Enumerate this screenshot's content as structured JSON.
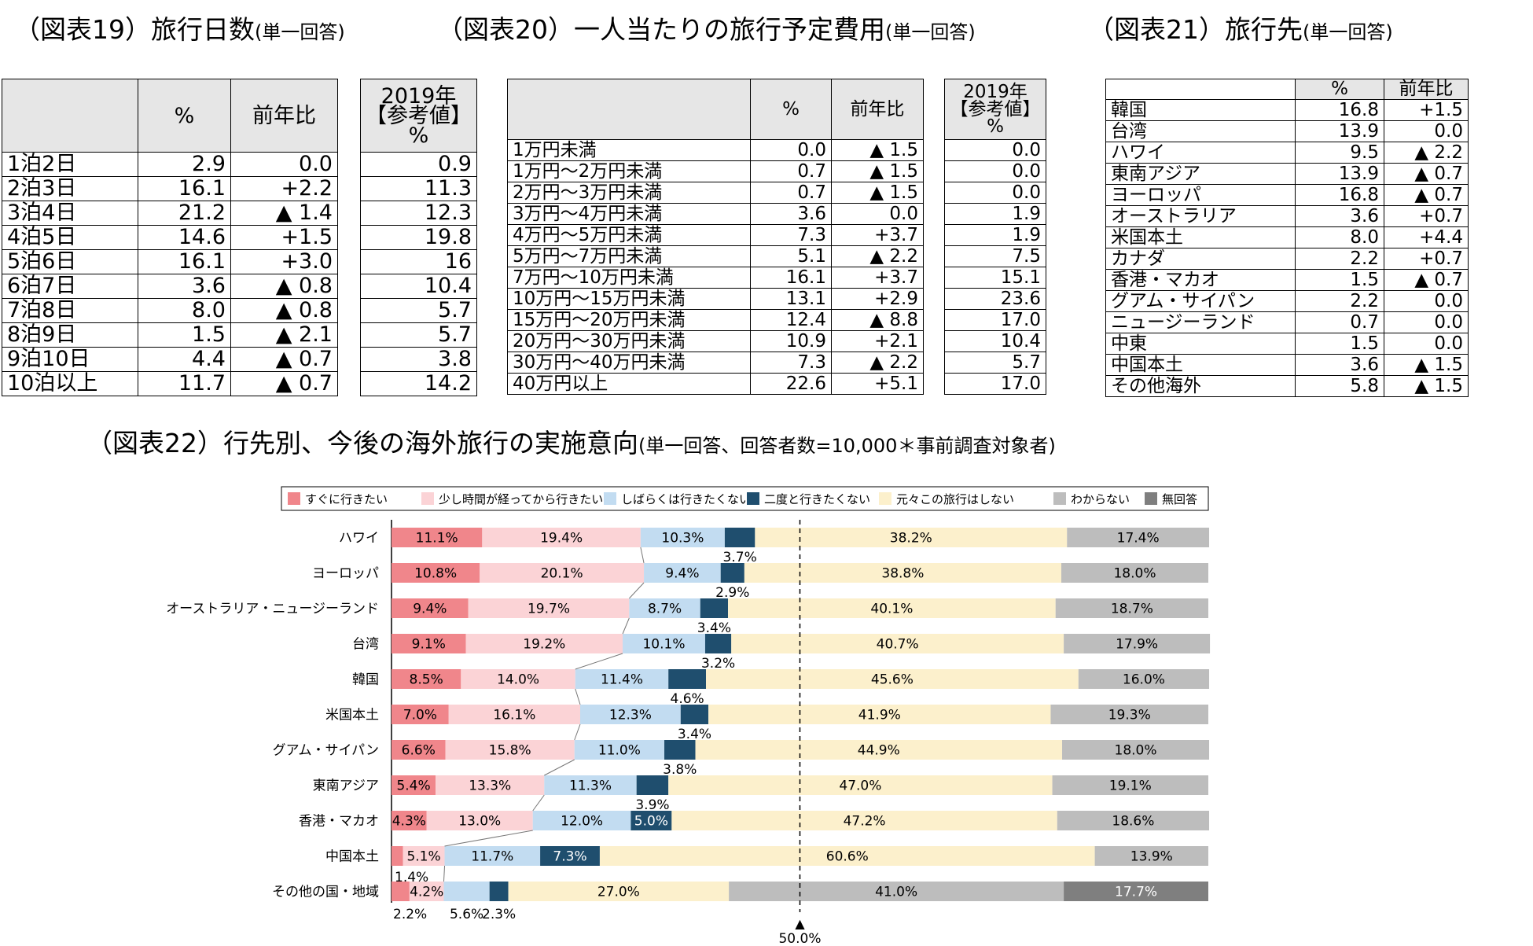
{
  "titles": {
    "t19": "（図表19）旅行日数",
    "t19_sub": "(単一回答)",
    "t20": "（図表20）一人当たりの旅行予定費用",
    "t20_sub": "(単一回答)",
    "t21": "（図表21）旅行先",
    "t21_sub": "(単一回答)",
    "t22": "（図表22）行先別、今後の海外旅行の実施意向",
    "t22_sub": "(単一回答、回答者数=10,000＊事前調査対象者)"
  },
  "table19": {
    "headers": [
      "",
      "%",
      "前年比"
    ],
    "ref_header": [
      "2019年",
      "【参考値】",
      "%"
    ],
    "rows": [
      {
        "label": "1泊2日",
        "pct": "2.9",
        "yoy": "0.0",
        "ref": "0.9"
      },
      {
        "label": "2泊3日",
        "pct": "16.1",
        "yoy": "+2.2",
        "ref": "11.3"
      },
      {
        "label": "3泊4日",
        "pct": "21.2",
        "yoy": "▲ 1.4",
        "ref": "12.3"
      },
      {
        "label": "4泊5日",
        "pct": "14.6",
        "yoy": "+1.5",
        "ref": "19.8"
      },
      {
        "label": "5泊6日",
        "pct": "16.1",
        "yoy": "+3.0",
        "ref": "16"
      },
      {
        "label": "6泊7日",
        "pct": "3.6",
        "yoy": "▲ 0.8",
        "ref": "10.4"
      },
      {
        "label": "7泊8日",
        "pct": "8.0",
        "yoy": "▲ 0.8",
        "ref": "5.7"
      },
      {
        "label": "8泊9日",
        "pct": "1.5",
        "yoy": "▲ 2.1",
        "ref": "5.7"
      },
      {
        "label": "9泊10日",
        "pct": "4.4",
        "yoy": "▲ 0.7",
        "ref": "3.8"
      },
      {
        "label": "10泊以上",
        "pct": "11.7",
        "yoy": "▲ 0.7",
        "ref": "14.2"
      }
    ]
  },
  "table20": {
    "headers": [
      "",
      "%",
      "前年比"
    ],
    "ref_header": [
      "2019年",
      "【参考値】",
      "%"
    ],
    "rows": [
      {
        "label": "1万円未満",
        "pct": "0.0",
        "yoy": "▲ 1.5",
        "ref": "0.0"
      },
      {
        "label": "1万円～2万円未満",
        "pct": "0.7",
        "yoy": "▲ 1.5",
        "ref": "0.0"
      },
      {
        "label": "2万円～3万円未満",
        "pct": "0.7",
        "yoy": "▲ 1.5",
        "ref": "0.0"
      },
      {
        "label": "3万円～4万円未満",
        "pct": "3.6",
        "yoy": "0.0",
        "ref": "1.9"
      },
      {
        "label": "4万円～5万円未満",
        "pct": "7.3",
        "yoy": "+3.7",
        "ref": "1.9"
      },
      {
        "label": "5万円～7万円未満",
        "pct": "5.1",
        "yoy": "▲ 2.2",
        "ref": "7.5"
      },
      {
        "label": "7万円～10万円未満",
        "pct": "16.1",
        "yoy": "+3.7",
        "ref": "15.1"
      },
      {
        "label": "10万円～15万円未満",
        "pct": "13.1",
        "yoy": "+2.9",
        "ref": "23.6"
      },
      {
        "label": "15万円～20万円未満",
        "pct": "12.4",
        "yoy": "▲ 8.8",
        "ref": "17.0"
      },
      {
        "label": "20万円～30万円未満",
        "pct": "10.9",
        "yoy": "+2.1",
        "ref": "10.4"
      },
      {
        "label": "30万円～40万円未満",
        "pct": "7.3",
        "yoy": "▲ 2.2",
        "ref": "5.7"
      },
      {
        "label": "40万円以上",
        "pct": "22.6",
        "yoy": "+5.1",
        "ref": "17.0"
      }
    ]
  },
  "table21": {
    "headers": [
      "",
      "%",
      "前年比"
    ],
    "rows": [
      {
        "label": "韓国",
        "pct": "16.8",
        "yoy": "+1.5"
      },
      {
        "label": "台湾",
        "pct": "13.9",
        "yoy": "0.0"
      },
      {
        "label": "ハワイ",
        "pct": "9.5",
        "yoy": "▲ 2.2"
      },
      {
        "label": "東南アジア",
        "pct": "13.9",
        "yoy": "▲ 0.7"
      },
      {
        "label": "ヨーロッパ",
        "pct": "16.8",
        "yoy": "▲ 0.7"
      },
      {
        "label": "オーストラリア",
        "pct": "3.6",
        "yoy": "+0.7"
      },
      {
        "label": "米国本土",
        "pct": "8.0",
        "yoy": "+4.4"
      },
      {
        "label": "カナダ",
        "pct": "2.2",
        "yoy": "+0.7"
      },
      {
        "label": "香港・マカオ",
        "pct": "1.5",
        "yoy": "▲ 0.7"
      },
      {
        "label": "グアム・サイパン",
        "pct": "2.2",
        "yoy": "0.0"
      },
      {
        "label": "ニュージーランド",
        "pct": "0.7",
        "yoy": "0.0"
      },
      {
        "label": "中東",
        "pct": "1.5",
        "yoy": "0.0"
      },
      {
        "label": "中国本土",
        "pct": "3.6",
        "yoy": "▲ 1.5"
      },
      {
        "label": "その他海外",
        "pct": "5.8",
        "yoy": "▲ 1.5"
      }
    ]
  },
  "chart_data": {
    "type": "bar",
    "orientation": "horizontal-stacked-100",
    "title": "（図表22）行先別、今後の海外旅行の実施意向",
    "categories": [
      "ハワイ",
      "ヨーロッパ",
      "オーストラリア・ニュージーランド",
      "台湾",
      "韓国",
      "米国本土",
      "グアム・サイパン",
      "東南アジア",
      "香港・マカオ",
      "中国本土",
      "その他の国・地域"
    ],
    "series": [
      {
        "name": "すぐに行きたい",
        "color": "#f0868b",
        "values": [
          11.1,
          10.8,
          9.4,
          9.1,
          8.5,
          7.0,
          6.6,
          5.4,
          4.3,
          1.4,
          2.2
        ]
      },
      {
        "name": "少し時間が経ってから行きたい",
        "color": "#fbd3d6",
        "values": [
          19.4,
          20.1,
          19.7,
          19.2,
          14.0,
          16.1,
          15.8,
          13.3,
          13.0,
          5.1,
          4.2
        ]
      },
      {
        "name": "しばらくは行きたくない",
        "color": "#c2dcf1",
        "values": [
          10.3,
          9.4,
          8.7,
          10.1,
          11.4,
          12.3,
          11.0,
          11.3,
          12.0,
          11.7,
          5.6
        ]
      },
      {
        "name": "二度と行きたくない",
        "color": "#1f4e6e",
        "values": [
          3.7,
          2.9,
          3.4,
          3.2,
          4.6,
          3.4,
          3.8,
          3.9,
          5.0,
          7.3,
          2.3
        ]
      },
      {
        "name": "元々この旅行はしない",
        "color": "#fcf0cc",
        "values": [
          38.2,
          38.8,
          40.1,
          40.7,
          45.6,
          41.9,
          44.9,
          47.0,
          47.2,
          60.6,
          27.0
        ]
      },
      {
        "name": "わからない",
        "color": "#bdbdbd",
        "values": [
          17.4,
          18.0,
          18.7,
          17.9,
          16.0,
          19.3,
          18.0,
          19.1,
          18.6,
          13.9,
          41.0
        ]
      },
      {
        "name": "無回答",
        "color": "#7f7f7f",
        "values": [
          0,
          0,
          0,
          0,
          0,
          0,
          0,
          0,
          0,
          0,
          17.7
        ]
      }
    ],
    "labels": [
      [
        "11.1%",
        "19.4%",
        "10.3%",
        "3.7%",
        "38.2%",
        "17.4%",
        ""
      ],
      [
        "10.8%",
        "20.1%",
        "9.4%",
        "2.9%",
        "38.8%",
        "18.0%",
        ""
      ],
      [
        "9.4%",
        "19.7%",
        "8.7%",
        "3.4%",
        "40.1%",
        "18.7%",
        ""
      ],
      [
        "9.1%",
        "19.2%",
        "10.1%",
        "3.2%",
        "40.7%",
        "17.9%",
        ""
      ],
      [
        "8.5%",
        "14.0%",
        "11.4%",
        "4.6%",
        "45.6%",
        "16.0%",
        ""
      ],
      [
        "7.0%",
        "16.1%",
        "12.3%",
        "3.4%",
        "41.9%",
        "19.3%",
        ""
      ],
      [
        "6.6%",
        "15.8%",
        "11.0%",
        "3.8%",
        "44.9%",
        "18.0%",
        ""
      ],
      [
        "5.4%",
        "13.3%",
        "11.3%",
        "3.9%",
        "47.0%",
        "19.1%",
        ""
      ],
      [
        "4.3%",
        "13.0%",
        "12.0%",
        "5.0%",
        "47.2%",
        "18.6%",
        ""
      ],
      [
        "1.4%",
        "5.1%",
        "11.7%",
        "7.3%",
        "60.6%",
        "13.9%",
        ""
      ],
      [
        "2.2%",
        "4.2%",
        "5.6%",
        "2.3%",
        "27.0%",
        "41.0%",
        "17.7%"
      ]
    ],
    "xlim": [
      0,
      100
    ],
    "reference_line": 50,
    "reference_label": "50.0%",
    "reference_marker": "▲",
    "legend_position": "top"
  }
}
